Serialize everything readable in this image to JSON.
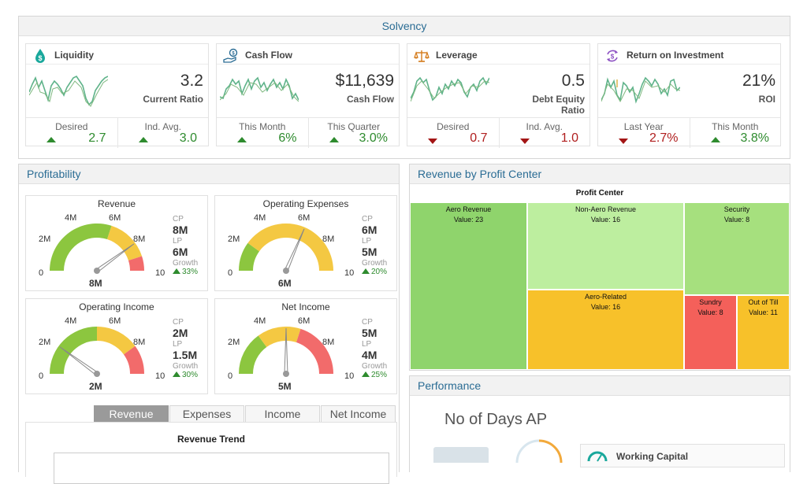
{
  "solvency": {
    "title": "Solvency",
    "cards": [
      {
        "title": "Liquidity",
        "icon": "dollar-drop-icon",
        "value": "3.2",
        "label": "Current Ratio",
        "foot": [
          {
            "label": "Desired",
            "value": "2.7",
            "dir": "up"
          },
          {
            "label": "Ind. Avg.",
            "value": "3.0",
            "dir": "up"
          }
        ]
      },
      {
        "title": "Cash Flow",
        "icon": "hand-coin-icon",
        "value": "$11,639",
        "label": "Cash Flow",
        "foot": [
          {
            "label": "This Month",
            "value": "6%",
            "dir": "up"
          },
          {
            "label": "This Quarter",
            "value": "3.0%",
            "dir": "up"
          }
        ]
      },
      {
        "title": "Leverage",
        "icon": "scale-icon",
        "value": "0.5",
        "label": "Debt Equity Ratio",
        "foot": [
          {
            "label": "Desired",
            "value": "0.7",
            "dir": "down"
          },
          {
            "label": "Ind. Avg.",
            "value": "1.0",
            "dir": "down"
          }
        ]
      },
      {
        "title": "Return on Investment",
        "icon": "dollar-cycle-icon",
        "value": "21%",
        "label": "ROI",
        "foot": [
          {
            "label": "Last Year",
            "value": "2.7%",
            "dir": "down"
          },
          {
            "label": "This Month",
            "value": "3.8%",
            "dir": "up"
          }
        ]
      }
    ]
  },
  "profitability": {
    "title": "Profitability",
    "gauges": [
      {
        "title": "Revenue",
        "current": "8M",
        "value": 8,
        "cp_label": "CP",
        "cp": "8M",
        "lp_label": "LP",
        "lp": "6M",
        "growth_label": "Growth",
        "growth": "33%"
      },
      {
        "title": "Operating Expenses",
        "current": "6M",
        "value": 6.3,
        "cp_label": "CP",
        "cp": "6M",
        "lp_label": "LP",
        "lp": "5M",
        "growth_label": "Growth",
        "growth": "20%"
      },
      {
        "title": "Operating Income",
        "current": "2M",
        "value": 2,
        "cp_label": "CP",
        "cp": "2M",
        "lp_label": "LP",
        "lp": "1.5M",
        "growth_label": "Growth",
        "growth": "30%"
      },
      {
        "title": "Net Income",
        "current": "5M",
        "value": 5,
        "cp_label": "CP",
        "cp": "5M",
        "lp_label": "LP",
        "lp": "4M",
        "growth_label": "Growth",
        "growth": "25%"
      }
    ],
    "ticks": [
      "0",
      "2M",
      "4M",
      "6M",
      "8M",
      "10"
    ],
    "tabs": [
      "Revenue",
      "Expenses",
      "Income",
      "Net Income"
    ],
    "trend_title": "Revenue Trend"
  },
  "revenue_by_profit_center": {
    "title": "Revenue by Profit Center",
    "header": "Profit Center",
    "value_prefix": "Value: ",
    "items": [
      {
        "name": "Aero Revenue",
        "value": 23,
        "color": "#8fd46c"
      },
      {
        "name": "Non-Aero Revenue",
        "value": 16,
        "color": "#bdee9f"
      },
      {
        "name": "Security",
        "value": 8,
        "color": "#a6e07e"
      },
      {
        "name": "Aero-Related",
        "value": 16,
        "color": "#f7c12a"
      },
      {
        "name": "Sundry",
        "value": 8,
        "color": "#f4605a"
      },
      {
        "name": "Out of Till",
        "value": 11,
        "color": "#f7c12a"
      }
    ]
  },
  "performance": {
    "title": "Performance",
    "days_label": "No of Days AP",
    "working_capital": "Working Capital"
  },
  "colors": {
    "accent": "#2a6c94",
    "good": "#2e8b2e",
    "bad": "#b01e1e",
    "spark": "#5fb38a"
  }
}
